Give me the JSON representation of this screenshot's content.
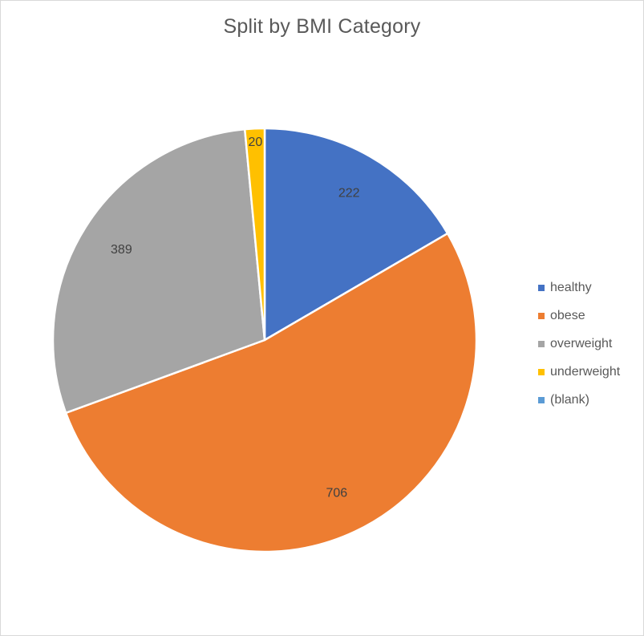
{
  "chart_data": {
    "type": "pie",
    "title": "Split by BMI Category",
    "categories": [
      "healthy",
      "obese",
      "overweight",
      "underweight",
      "(blank)"
    ],
    "values": [
      222,
      706,
      389,
      20,
      0
    ],
    "data_labels": [
      "222",
      "706",
      "389",
      "20",
      ""
    ],
    "colors": [
      "#4472C4",
      "#ED7D31",
      "#A5A5A5",
      "#FFC000",
      "#5B9BD5"
    ],
    "legend_position": "right",
    "start_angle": "12 o'clock, clockwise"
  }
}
